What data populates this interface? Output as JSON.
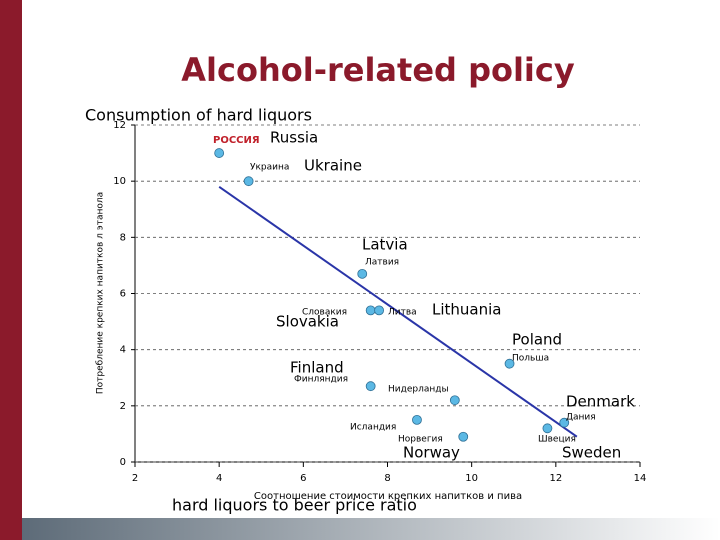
{
  "title": "Alcohol-related policy",
  "chart_data": {
    "type": "scatter",
    "title": "Consumption of hard liquors",
    "y_label": "Потребление крепких напитков л этанола",
    "x_label_ru": "Соотношение стоимости крепких напитков и пива",
    "x_label": "hard liquors to beer price ratio",
    "x": [
      4.0,
      4.7,
      7.4,
      7.6,
      7.8,
      10.9,
      7.6,
      9.6,
      8.7,
      9.8,
      12.2,
      11.8
    ],
    "y": [
      11,
      10.0,
      6.7,
      5.4,
      5.4,
      3.5,
      2.7,
      2.2,
      1.5,
      0.9,
      1.4,
      1.2
    ],
    "labels_ru": [
      "РОССИЯ",
      "Украина",
      "Латвия",
      "Словакия",
      "Литва",
      "Польша",
      "Финляндия",
      "Нидерланды",
      "Исландия",
      "Норвегия",
      "Дания",
      "Швеция"
    ],
    "labels_en": [
      "Russia",
      "Ukraine",
      "Latvia",
      "Slovakia",
      "Lithuania",
      "Poland",
      "Finland",
      null,
      null,
      "Norway",
      "Denmark",
      "Sweden"
    ],
    "color": "#5bb8e4",
    "trendline": {
      "x": [
        4.0,
        12.5
      ],
      "y": [
        9.8,
        0.9
      ],
      "color": "#2a35a8"
    },
    "xlim": [
      2,
      14
    ],
    "ylim": [
      0,
      12
    ],
    "xticks": [
      2,
      4,
      6,
      8,
      10,
      12,
      14
    ],
    "yticks": [
      0,
      2,
      4,
      6,
      8,
      10,
      12
    ],
    "grid": true
  }
}
